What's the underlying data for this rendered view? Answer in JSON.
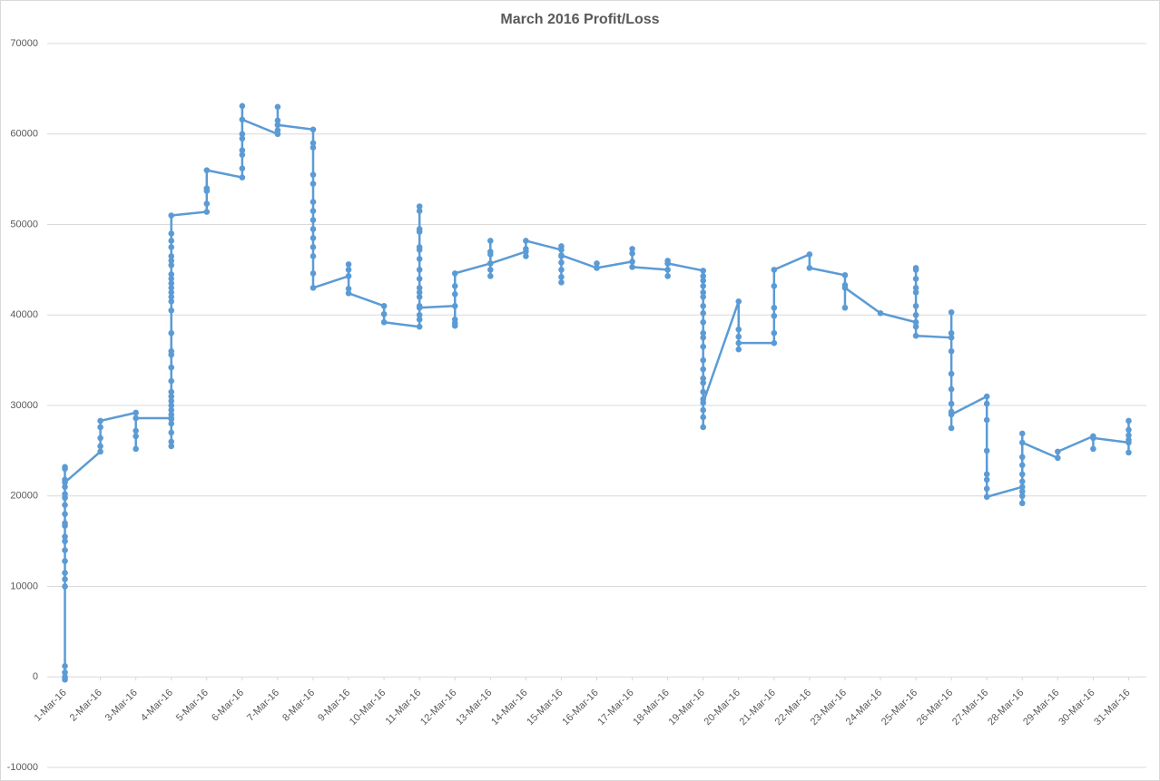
{
  "chart_data": {
    "type": "line",
    "title": "March 2016 Profit/Loss",
    "x": [
      1,
      1,
      1,
      1,
      1,
      1,
      1,
      1,
      1,
      1,
      1,
      1,
      1,
      1,
      1,
      1,
      1,
      1,
      1,
      1,
      1,
      1,
      2,
      2,
      2,
      2,
      2,
      3,
      3,
      3,
      3,
      3,
      4,
      4,
      4,
      4,
      4,
      4,
      4,
      4,
      4,
      4,
      4,
      4,
      4,
      4,
      4,
      4,
      4,
      4,
      4,
      4,
      4,
      4,
      4,
      4,
      4,
      4,
      4,
      4,
      4,
      4,
      4,
      4,
      5,
      5,
      5,
      5,
      5,
      6,
      6,
      6,
      6,
      6,
      6,
      6,
      6,
      7,
      7,
      7,
      7,
      7,
      7,
      8,
      8,
      8,
      8,
      8,
      8,
      8,
      8,
      8,
      8,
      8,
      8,
      8,
      8,
      9,
      9,
      9,
      9,
      9,
      10,
      10,
      10,
      11,
      11,
      11,
      11,
      11,
      11,
      11,
      11,
      11,
      11,
      11,
      11,
      11,
      11,
      11,
      11,
      11,
      12,
      12,
      12,
      12,
      12,
      12,
      12,
      13,
      13,
      13,
      13,
      13,
      13,
      13,
      14,
      14,
      14,
      14,
      15,
      15,
      15,
      15,
      15,
      15,
      15,
      15,
      16,
      16,
      16,
      17,
      17,
      17,
      17,
      18,
      18,
      18,
      18,
      18,
      19,
      19,
      19,
      19,
      19,
      19,
      19,
      19,
      19,
      19,
      19,
      19,
      19,
      19,
      19,
      19,
      19,
      19,
      19,
      19,
      19,
      19,
      20,
      20,
      20,
      20,
      20,
      21,
      21,
      21,
      21,
      21,
      21,
      22,
      22,
      23,
      23,
      23,
      23,
      24,
      25,
      25,
      25,
      25,
      25,
      25,
      25,
      25,
      25,
      25,
      26,
      26,
      26,
      26,
      26,
      26,
      26,
      26,
      26,
      26,
      27,
      27,
      27,
      27,
      27,
      27,
      27,
      27,
      28,
      28,
      28,
      28,
      28,
      28,
      28,
      28,
      28,
      28,
      29,
      29,
      30,
      30,
      30,
      31,
      31,
      31,
      31,
      31,
      31
    ],
    "series": [
      {
        "color": "#5b9bd5",
        "values": [
          0,
          -300,
          500,
          1200,
          10000,
          10800,
          11500,
          12800,
          14000,
          15000,
          15500,
          16700,
          17000,
          18000,
          19000,
          19800,
          20200,
          21000,
          21800,
          23000,
          23200,
          21500,
          24900,
          25500,
          26400,
          27600,
          28300,
          29200,
          25200,
          26600,
          27200,
          28600,
          28600,
          25500,
          26000,
          27000,
          28000,
          28500,
          29000,
          29500,
          30000,
          30500,
          31000,
          31500,
          32700,
          34200,
          35600,
          36000,
          38000,
          40500,
          41500,
          42000,
          42500,
          43000,
          43500,
          44000,
          44500,
          45500,
          46000,
          46500,
          47500,
          48200,
          49000,
          51000,
          51400,
          52300,
          53700,
          54000,
          56000,
          55200,
          56200,
          57700,
          58200,
          59500,
          60000,
          63100,
          61600,
          60000,
          60400,
          61000,
          61500,
          63000,
          61000,
          60500,
          59000,
          58500,
          55500,
          54500,
          52500,
          51500,
          50500,
          49500,
          48500,
          47500,
          46500,
          44600,
          43000,
          44300,
          45000,
          45600,
          42900,
          42400,
          41000,
          40100,
          39200,
          38700,
          39500,
          40000,
          41000,
          42000,
          43000,
          44000,
          45000,
          46200,
          47200,
          47500,
          49200,
          49500,
          51500,
          52000,
          42500,
          40800,
          41000,
          39500,
          38800,
          39100,
          42300,
          43200,
          44600,
          45700,
          44300,
          45000,
          46700,
          47000,
          48200,
          45700,
          47000,
          46500,
          47300,
          48200,
          47200,
          43600,
          44200,
          45000,
          45800,
          46500,
          47600,
          46600,
          45200,
          45700,
          45200,
          45900,
          46800,
          47300,
          45300,
          45000,
          44300,
          45700,
          46000,
          45700,
          44900,
          44300,
          43800,
          43200,
          42500,
          42000,
          41000,
          40200,
          39200,
          38000,
          37500,
          36500,
          35000,
          34000,
          33000,
          32500,
          31500,
          30700,
          29500,
          28700,
          27600,
          30300,
          41500,
          38400,
          37600,
          36200,
          36900,
          36900,
          38000,
          39900,
          40800,
          43200,
          45000,
          46700,
          45200,
          44400,
          43300,
          40800,
          43000,
          40200,
          39200,
          38700,
          40000,
          41000,
          42500,
          43000,
          44000,
          45000,
          45200,
          37700,
          37500,
          38000,
          40300,
          36000,
          33500,
          31800,
          30200,
          29300,
          27500,
          29000,
          31000,
          30200,
          28400,
          25000,
          22400,
          21800,
          20800,
          19900,
          21000,
          19200,
          20000,
          20500,
          21600,
          22400,
          23400,
          24300,
          26900,
          25900,
          24200,
          24900,
          26600,
          25200,
          26400,
          25900,
          24800,
          26200,
          26700,
          27300,
          28300
        ]
      }
    ],
    "xlim": [
      0.5,
      31.5
    ],
    "xticks": [
      {
        "value": 1,
        "label": "1-Mar-16"
      },
      {
        "value": 2,
        "label": "2-Mar-16"
      },
      {
        "value": 3,
        "label": "3-Mar-16"
      },
      {
        "value": 4,
        "label": "4-Mar-16"
      },
      {
        "value": 5,
        "label": "5-Mar-16"
      },
      {
        "value": 6,
        "label": "6-Mar-16"
      },
      {
        "value": 7,
        "label": "7-Mar-16"
      },
      {
        "value": 8,
        "label": "8-Mar-16"
      },
      {
        "value": 9,
        "label": "9-Mar-16"
      },
      {
        "value": 10,
        "label": "10-Mar-16"
      },
      {
        "value": 11,
        "label": "11-Mar-16"
      },
      {
        "value": 12,
        "label": "12-Mar-16"
      },
      {
        "value": 13,
        "label": "13-Mar-16"
      },
      {
        "value": 14,
        "label": "14-Mar-16"
      },
      {
        "value": 15,
        "label": "15-Mar-16"
      },
      {
        "value": 16,
        "label": "16-Mar-16"
      },
      {
        "value": 17,
        "label": "17-Mar-16"
      },
      {
        "value": 18,
        "label": "18-Mar-16"
      },
      {
        "value": 19,
        "label": "19-Mar-16"
      },
      {
        "value": 20,
        "label": "20-Mar-16"
      },
      {
        "value": 21,
        "label": "21-Mar-16"
      },
      {
        "value": 22,
        "label": "22-Mar-16"
      },
      {
        "value": 23,
        "label": "23-Mar-16"
      },
      {
        "value": 24,
        "label": "24-Mar-16"
      },
      {
        "value": 25,
        "label": "25-Mar-16"
      },
      {
        "value": 26,
        "label": "26-Mar-16"
      },
      {
        "value": 27,
        "label": "27-Mar-16"
      },
      {
        "value": 28,
        "label": "28-Mar-16"
      },
      {
        "value": 29,
        "label": "29-Mar-16"
      },
      {
        "value": 30,
        "label": "30-Mar-16"
      },
      {
        "value": 31,
        "label": "31-Mar-16"
      }
    ],
    "ylim": [
      -10000,
      70000
    ],
    "yticks": [
      -10000,
      0,
      10000,
      20000,
      30000,
      40000,
      50000,
      60000,
      70000
    ],
    "grid": true
  }
}
